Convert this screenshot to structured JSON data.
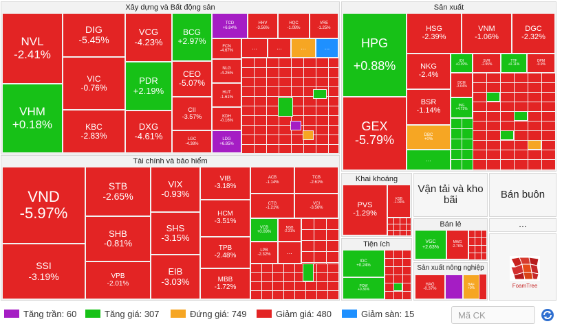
{
  "sectors": {
    "xay_dung": "Xây dựng và Bất động sản",
    "san_xuat": "Sản xuất",
    "tai_chinh": "Tài chính và bảo hiểm",
    "khai_khoang": "Khai khoáng",
    "tien_ich": "Tiện ích",
    "van_tai": "Vận tải và kho bãi",
    "ban_buon": "Bán buôn",
    "ban_le": "Bán lẻ",
    "sx_nong_nghiep": "Sản xuất nông nghiệp",
    "other": "..."
  },
  "tiles": {
    "NVL": {
      "symbol": "NVL",
      "change": "-2.41%"
    },
    "VHM": {
      "symbol": "VHM",
      "change": "+0.18%"
    },
    "DIG": {
      "symbol": "DIG",
      "change": "-5.45%"
    },
    "VIC": {
      "symbol": "VIC",
      "change": "-0.76%"
    },
    "KBC": {
      "symbol": "KBC",
      "change": "-2.83%"
    },
    "VCG": {
      "symbol": "VCG",
      "change": "-4.23%"
    },
    "PDR": {
      "symbol": "PDR",
      "change": "+2.19%"
    },
    "DXG": {
      "symbol": "DXG",
      "change": "-4.61%"
    },
    "BCG": {
      "symbol": "BCG",
      "change": "+2.97%"
    },
    "CEO": {
      "symbol": "CEO",
      "change": "-5.07%"
    },
    "CII": {
      "symbol": "CII",
      "change": "-3.57%"
    },
    "LGC": {
      "symbol": "LGC",
      "change": "-4.38%"
    },
    "TCD": {
      "symbol": "TCD",
      "change": "+6.84%"
    },
    "FCN": {
      "symbol": "FCN",
      "change": "-4.67%"
    },
    "NLG": {
      "symbol": "NLG",
      "change": "-4.25%"
    },
    "HUT": {
      "symbol": "HUT",
      "change": "-1.61%"
    },
    "KDH": {
      "symbol": "KDH",
      "change": "-0.16%"
    },
    "LDG": {
      "symbol": "LDG",
      "change": "+6.85%"
    },
    "HHV": {
      "symbol": "HHV",
      "change": "-3.56%"
    },
    "HQC": {
      "symbol": "HQC",
      "change": "-1.08%"
    },
    "VRE": {
      "symbol": "VRE",
      "change": "-1.25%"
    },
    "HPG": {
      "symbol": "HPG",
      "change": "+0.88%"
    },
    "GEX": {
      "symbol": "GEX",
      "change": "-5.79%"
    },
    "HSG": {
      "symbol": "HSG",
      "change": "-2.39%"
    },
    "VNM": {
      "symbol": "VNM",
      "change": "-1.06%"
    },
    "DGC": {
      "symbol": "DGC",
      "change": "-2.32%"
    },
    "NKG": {
      "symbol": "NKG",
      "change": "-2.4%"
    },
    "BSR": {
      "symbol": "BSR",
      "change": "-1.14%"
    },
    "DBC": {
      "symbol": "DBC",
      "change": "+0%"
    },
    "IDI": {
      "symbol": "IDI",
      "change": "+0.39%"
    },
    "SVR": {
      "symbol": "SVR",
      "change": "-2.95%"
    },
    "TTF": {
      "symbol": "TTF",
      "change": "+0.11%"
    },
    "DPM": {
      "symbol": "DPM",
      "change": "-0.9%"
    },
    "DCM": {
      "symbol": "DCM",
      "change": "-3.64%"
    },
    "ING": {
      "symbol": "ING",
      "change": "+4.71%"
    },
    "VND": {
      "symbol": "VND",
      "change": "-5.97%"
    },
    "SSI": {
      "symbol": "SSI",
      "change": "-3.19%"
    },
    "STB": {
      "symbol": "STB",
      "change": "-2.65%"
    },
    "SHB": {
      "symbol": "SHB",
      "change": "-0.81%"
    },
    "VPB": {
      "symbol": "VPB",
      "change": "-2.01%"
    },
    "VIX": {
      "symbol": "VIX",
      "change": "-0.93%"
    },
    "SHS": {
      "symbol": "SHS",
      "change": "-3.15%"
    },
    "EIB": {
      "symbol": "EIB",
      "change": "-3.03%"
    },
    "VIB": {
      "symbol": "VIB",
      "change": "-3.18%"
    },
    "HCM": {
      "symbol": "HCM",
      "change": "-3.51%"
    },
    "TPB": {
      "symbol": "TPB",
      "change": "-2.48%"
    },
    "MBB": {
      "symbol": "MBB",
      "change": "-1.72%"
    },
    "ACB": {
      "symbol": "ACB",
      "change": "-1.14%"
    },
    "TCB": {
      "symbol": "TCB",
      "change": "-2.61%"
    },
    "CTG": {
      "symbol": "CTG",
      "change": "-1.21%"
    },
    "VCI": {
      "symbol": "VCI",
      "change": "-3.56%"
    },
    "VCB": {
      "symbol": "VCB",
      "change": "+0.09%"
    },
    "MSB": {
      "symbol": "MSB",
      "change": "-2.31%"
    },
    "LPB": {
      "symbol": "LPB",
      "change": "-2.32%"
    },
    "PVS": {
      "symbol": "PVS",
      "change": "-1.29%"
    },
    "KSB": {
      "symbol": "KSB",
      "change": "-1.06%"
    },
    "IDC": {
      "symbol": "IDC",
      "change": "+0.24%"
    },
    "POW": {
      "symbol": "POW",
      "change": "+0.36%"
    },
    "VGC": {
      "symbol": "VGC",
      "change": "+2.63%"
    },
    "MWG": {
      "symbol": "MWG",
      "change": "-2.76%"
    },
    "HAG": {
      "symbol": "HAG",
      "change": "-0.37%"
    },
    "BAF": {
      "symbol": "BAF",
      "change": "+0%"
    }
  },
  "dots": "...",
  "legend": [
    {
      "label": "Tăng trần: 60",
      "color": "#a51dc4"
    },
    {
      "label": "Tăng giá: 307",
      "color": "#17c117"
    },
    {
      "label": "Đứng giá: 749",
      "color": "#f6a623"
    },
    {
      "label": "Giảm giá: 480",
      "color": "#e32424"
    },
    {
      "label": "Giảm sàn: 15",
      "color": "#1e90ff"
    }
  ],
  "search": {
    "placeholder": "Mã CK"
  },
  "logo": {
    "text": "FoamTree"
  }
}
